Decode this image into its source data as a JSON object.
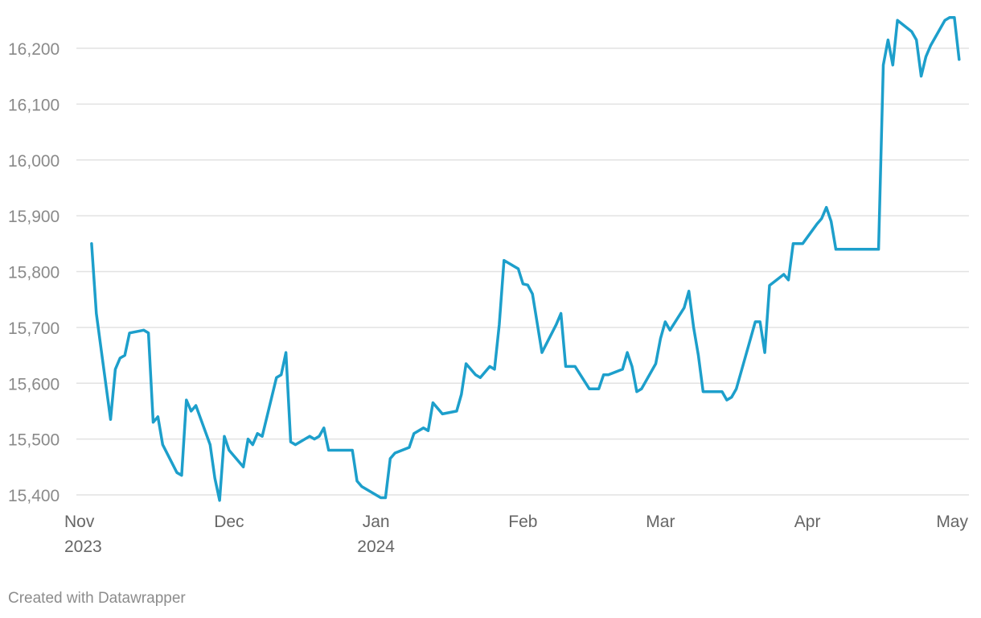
{
  "chart_data": {
    "type": "line",
    "title": "",
    "xlabel": "",
    "ylabel": "",
    "ylim": [
      15400,
      16250
    ],
    "xlim": [
      "2023-11-01",
      "2024-05-01"
    ],
    "grid": true,
    "y_ticks": [
      {
        "value": 15400,
        "label": "15,400"
      },
      {
        "value": 15500,
        "label": "15,500"
      },
      {
        "value": 15600,
        "label": "15,600"
      },
      {
        "value": 15700,
        "label": "15,700"
      },
      {
        "value": 15800,
        "label": "15,800"
      },
      {
        "value": 15900,
        "label": "15,900"
      },
      {
        "value": 16000,
        "label": "16,000"
      },
      {
        "value": 16100,
        "label": "16,100"
      },
      {
        "value": 16200,
        "label": "16,200"
      }
    ],
    "x_ticks": [
      {
        "date": "2023-11-01",
        "label": "Nov",
        "sublabel": "2023"
      },
      {
        "date": "2023-12-01",
        "label": "Dec",
        "sublabel": ""
      },
      {
        "date": "2024-01-01",
        "label": "Jan",
        "sublabel": "2024"
      },
      {
        "date": "2024-02-01",
        "label": "Feb",
        "sublabel": ""
      },
      {
        "date": "2024-03-01",
        "label": "Mar",
        "sublabel": ""
      },
      {
        "date": "2024-04-01",
        "label": "Apr",
        "sublabel": ""
      },
      {
        "date": "2024-05-01",
        "label": "May",
        "sublabel": ""
      }
    ],
    "series": [
      {
        "color": "#1d9fcb",
        "points": [
          [
            "2023-11-02",
            15850
          ],
          [
            "2023-11-03",
            15725
          ],
          [
            "2023-11-06",
            15535
          ],
          [
            "2023-11-07",
            15625
          ],
          [
            "2023-11-08",
            15645
          ],
          [
            "2023-11-09",
            15650
          ],
          [
            "2023-11-10",
            15690
          ],
          [
            "2023-11-13",
            15695
          ],
          [
            "2023-11-14",
            15690
          ],
          [
            "2023-11-15",
            15530
          ],
          [
            "2023-11-16",
            15540
          ],
          [
            "2023-11-17",
            15490
          ],
          [
            "2023-11-20",
            15440
          ],
          [
            "2023-11-21",
            15435
          ],
          [
            "2023-11-22",
            15570
          ],
          [
            "2023-11-23",
            15550
          ],
          [
            "2023-11-24",
            15560
          ],
          [
            "2023-11-27",
            15490
          ],
          [
            "2023-11-28",
            15430
          ],
          [
            "2023-11-29",
            15390
          ],
          [
            "2023-11-30",
            15505
          ],
          [
            "2023-12-01",
            15480
          ],
          [
            "2023-12-04",
            15450
          ],
          [
            "2023-12-05",
            15500
          ],
          [
            "2023-12-06",
            15490
          ],
          [
            "2023-12-07",
            15510
          ],
          [
            "2023-12-08",
            15505
          ],
          [
            "2023-12-11",
            15610
          ],
          [
            "2023-12-12",
            15615
          ],
          [
            "2023-12-13",
            15655
          ],
          [
            "2023-12-14",
            15495
          ],
          [
            "2023-12-15",
            15490
          ],
          [
            "2023-12-18",
            15505
          ],
          [
            "2023-12-19",
            15500
          ],
          [
            "2023-12-20",
            15505
          ],
          [
            "2023-12-21",
            15520
          ],
          [
            "2023-12-22",
            15480
          ],
          [
            "2023-12-27",
            15480
          ],
          [
            "2023-12-28",
            15425
          ],
          [
            "2023-12-29",
            15415
          ],
          [
            "2024-01-02",
            15395
          ],
          [
            "2024-01-03",
            15395
          ],
          [
            "2024-01-04",
            15465
          ],
          [
            "2024-01-05",
            15475
          ],
          [
            "2024-01-08",
            15485
          ],
          [
            "2024-01-09",
            15510
          ],
          [
            "2024-01-10",
            15515
          ],
          [
            "2024-01-11",
            15520
          ],
          [
            "2024-01-12",
            15515
          ],
          [
            "2024-01-13",
            15565
          ],
          [
            "2024-01-15",
            15545
          ],
          [
            "2024-01-18",
            15550
          ],
          [
            "2024-01-19",
            15580
          ],
          [
            "2024-01-20",
            15635
          ],
          [
            "2024-01-22",
            15615
          ],
          [
            "2024-01-23",
            15610
          ],
          [
            "2024-01-25",
            15630
          ],
          [
            "2024-01-26",
            15625
          ],
          [
            "2024-01-27",
            15705
          ],
          [
            "2024-01-28",
            15820
          ],
          [
            "2024-01-31",
            15805
          ],
          [
            "2024-02-01",
            15778
          ],
          [
            "2024-02-02",
            15776
          ],
          [
            "2024-02-03",
            15760
          ],
          [
            "2024-02-05",
            15655
          ],
          [
            "2024-02-08",
            15705
          ],
          [
            "2024-02-09",
            15725
          ],
          [
            "2024-02-10",
            15630
          ],
          [
            "2024-02-12",
            15630
          ],
          [
            "2024-02-15",
            15590
          ],
          [
            "2024-02-17",
            15590
          ],
          [
            "2024-02-18",
            15615
          ],
          [
            "2024-02-19",
            15615
          ],
          [
            "2024-02-22",
            15625
          ],
          [
            "2024-02-23",
            15655
          ],
          [
            "2024-02-24",
            15630
          ],
          [
            "2024-02-25",
            15585
          ],
          [
            "2024-02-26",
            15590
          ],
          [
            "2024-02-29",
            15635
          ],
          [
            "2024-03-01",
            15680
          ],
          [
            "2024-03-02",
            15710
          ],
          [
            "2024-03-03",
            15695
          ],
          [
            "2024-03-06",
            15735
          ],
          [
            "2024-03-07",
            15765
          ],
          [
            "2024-03-08",
            15700
          ],
          [
            "2024-03-09",
            15650
          ],
          [
            "2024-03-10",
            15585
          ],
          [
            "2024-03-14",
            15585
          ],
          [
            "2024-03-15",
            15570
          ],
          [
            "2024-03-16",
            15575
          ],
          [
            "2024-03-17",
            15590
          ],
          [
            "2024-03-20",
            15680
          ],
          [
            "2024-03-21",
            15710
          ],
          [
            "2024-03-22",
            15710
          ],
          [
            "2024-03-23",
            15655
          ],
          [
            "2024-03-24",
            15775
          ],
          [
            "2024-03-27",
            15795
          ],
          [
            "2024-03-28",
            15785
          ],
          [
            "2024-03-29",
            15850
          ],
          [
            "2024-03-31",
            15850
          ],
          [
            "2024-04-03",
            15885
          ],
          [
            "2024-04-04",
            15895
          ],
          [
            "2024-04-05",
            15915
          ],
          [
            "2024-04-06",
            15890
          ],
          [
            "2024-04-07",
            15840
          ],
          [
            "2024-04-16",
            15840
          ],
          [
            "2024-04-17",
            16170
          ],
          [
            "2024-04-18",
            16215
          ],
          [
            "2024-04-19",
            16170
          ],
          [
            "2024-04-20",
            16250
          ],
          [
            "2024-04-23",
            16230
          ],
          [
            "2024-04-24",
            16215
          ],
          [
            "2024-04-25",
            16150
          ],
          [
            "2024-04-26",
            16185
          ],
          [
            "2024-04-27",
            16205
          ],
          [
            "2024-04-30",
            16250
          ],
          [
            "2024-05-01",
            16255
          ],
          [
            "2024-05-02",
            16255
          ],
          [
            "2024-05-03",
            16180
          ]
        ]
      }
    ]
  },
  "footer": {
    "credit": "Created with Datawrapper"
  }
}
